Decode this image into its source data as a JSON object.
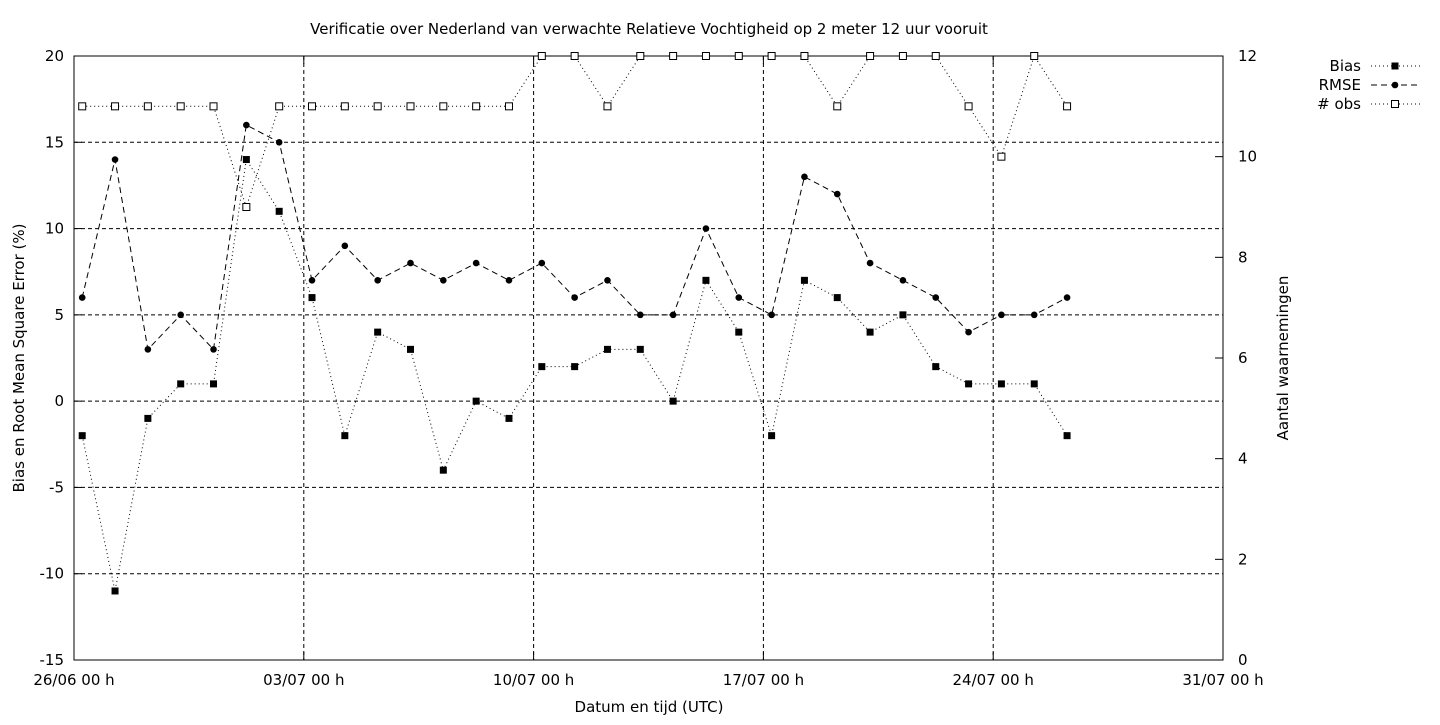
{
  "chart_data": {
    "type": "line",
    "title": "Verificatie over Nederland van verwachte Relatieve Vochtigheid op 2 meter 12 uur vooruit",
    "xlabel": "Datum en tijd (UTC)",
    "ylabel": "Bias en Root Mean Square Error (%)",
    "y2label": "Aantal waarnemingen",
    "x_ticks": [
      "26/06 00 h",
      "03/07 00 h",
      "10/07 00 h",
      "17/07 00 h",
      "24/07 00 h",
      "31/07 00 h"
    ],
    "x_tick_days": [
      0,
      7,
      14,
      21,
      28,
      35
    ],
    "xlim": [
      0,
      35
    ],
    "ylim": [
      -15,
      20
    ],
    "y_ticks": [
      -15,
      -10,
      -5,
      0,
      5,
      10,
      15,
      20
    ],
    "y2lim": [
      0,
      12
    ],
    "y2_ticks": [
      0,
      2,
      4,
      6,
      8,
      10,
      12
    ],
    "grid": true,
    "legend_position": "top-right, outside plot",
    "x_days": [
      0.25,
      1.25,
      2.25,
      3.25,
      4.25,
      5.25,
      6.25,
      7.25,
      8.25,
      9.25,
      10.25,
      11.25,
      12.25,
      13.25,
      14.25,
      15.25,
      16.25,
      17.25,
      18.25,
      19.25,
      20.25,
      21.25,
      22.25,
      23.25,
      24.25,
      25.25,
      26.25,
      27.25,
      28.25,
      29.25,
      30.25
    ],
    "series": [
      {
        "name": "Bias",
        "axis": "left",
        "line": "dotted",
        "marker": "filled-square",
        "values": [
          -2,
          -11,
          -1,
          1,
          1,
          14,
          11,
          6,
          -2,
          4,
          3,
          -4,
          0,
          -1,
          2,
          2,
          3,
          3,
          0,
          7,
          4,
          -2,
          7,
          6,
          4,
          5,
          2,
          1,
          1,
          1,
          -2
        ]
      },
      {
        "name": "RMSE",
        "axis": "left",
        "line": "dashed",
        "marker": "filled-circle",
        "values": [
          6,
          14,
          3,
          5,
          3,
          16,
          15,
          7,
          9,
          7,
          8,
          7,
          8,
          7,
          8,
          6,
          7,
          5,
          5,
          10,
          6,
          5,
          13,
          12,
          8,
          7,
          6,
          4,
          5,
          5,
          6
        ]
      },
      {
        "name": "# obs",
        "axis": "right",
        "line": "dotted",
        "marker": "open-square",
        "values": [
          11,
          11,
          11,
          11,
          11,
          9,
          11,
          11,
          11,
          11,
          11,
          11,
          11,
          11,
          12,
          12,
          11,
          12,
          12,
          12,
          12,
          12,
          12,
          11,
          12,
          12,
          12,
          11,
          10,
          12,
          11
        ]
      }
    ]
  }
}
